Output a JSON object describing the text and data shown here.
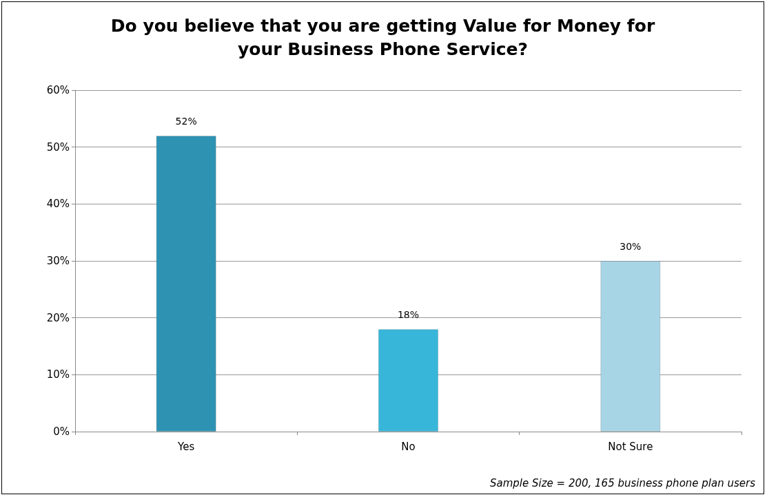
{
  "chart_data": {
    "type": "bar",
    "title": "Do you believe that you are getting Value for Money for\nyour Business Phone Service?",
    "categories": [
      "Yes",
      "No",
      "Not Sure"
    ],
    "values": [
      52,
      18,
      30
    ],
    "colors": [
      "#2e93b3",
      "#38b6da",
      "#a8d5e6"
    ],
    "value_labels": [
      "52%",
      "18%",
      "30%"
    ],
    "ylim": [
      0,
      60
    ],
    "yticks": [
      {
        "value": 0,
        "label": "0%"
      },
      {
        "value": 10,
        "label": "10%"
      },
      {
        "value": 20,
        "label": "20%"
      },
      {
        "value": 30,
        "label": "30%"
      },
      {
        "value": 40,
        "label": "40%"
      },
      {
        "value": 50,
        "label": "50%"
      },
      {
        "value": 60,
        "label": "60%"
      }
    ],
    "grid": "y",
    "annotations": [
      "Sample Size = 200, 165 business phone plan users"
    ]
  }
}
